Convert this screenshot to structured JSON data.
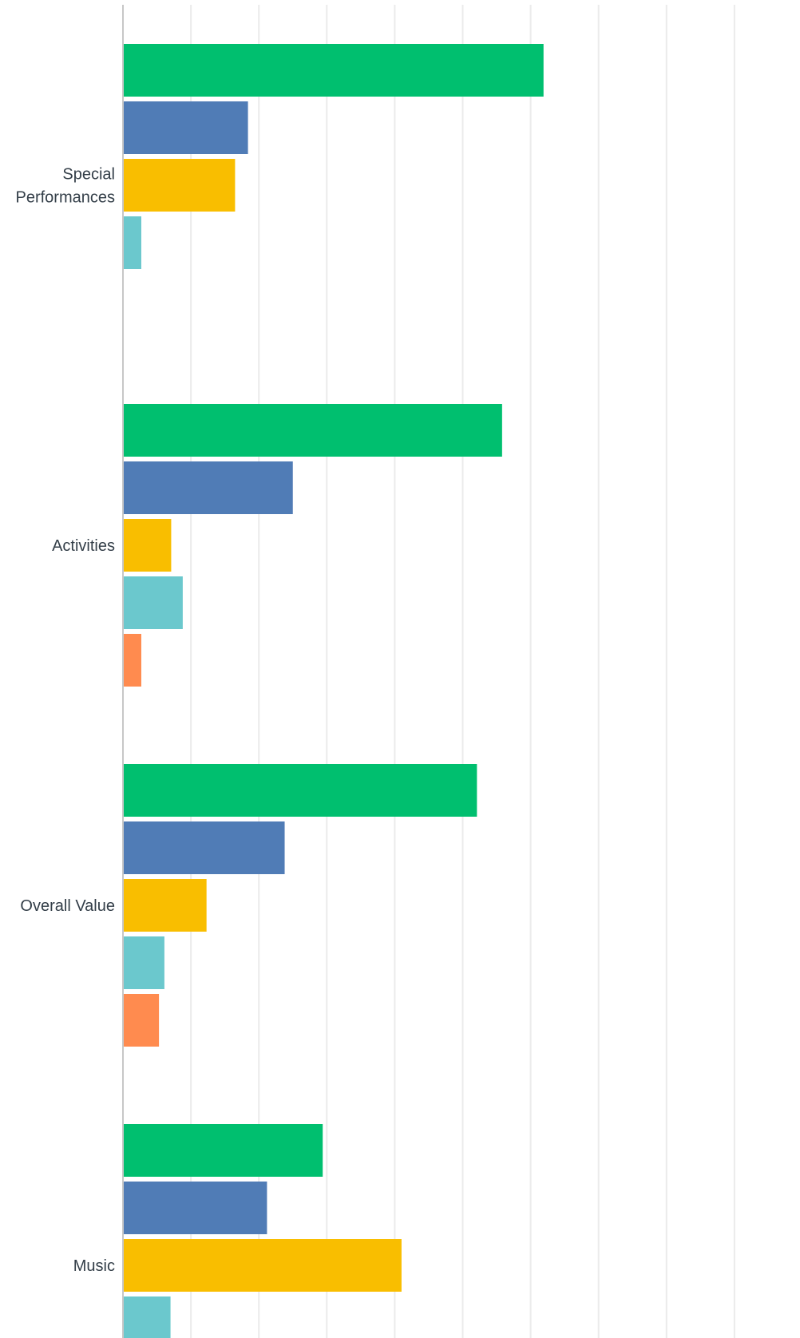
{
  "chart_data": {
    "type": "bar",
    "orientation": "horizontal",
    "grid": true,
    "xlim": [
      0,
      100
    ],
    "xticks": [
      0,
      10,
      20,
      30,
      40,
      50,
      60,
      70,
      80,
      90,
      100
    ],
    "categories": [
      "Special Performances",
      "Activities",
      "Overall Value",
      "Music"
    ],
    "category_label_lines": [
      [
        "Special",
        "Performances"
      ],
      [
        "Activities"
      ],
      [
        "Overall Value"
      ],
      [
        "Music"
      ]
    ],
    "series": [
      {
        "color": "#00bf6f",
        "values": [
          61.9,
          55.8,
          52.1,
          29.4
        ]
      },
      {
        "color": "#507cb6",
        "values": [
          18.4,
          25.0,
          23.8,
          21.2
        ]
      },
      {
        "color": "#f9be00",
        "values": [
          16.5,
          7.1,
          12.3,
          41.0
        ]
      },
      {
        "color": "#6bc8cd",
        "values": [
          2.7,
          8.8,
          6.1,
          7.0
        ]
      },
      {
        "color": "#ff8b4f",
        "values": [
          0,
          2.7,
          5.3,
          null
        ]
      }
    ]
  }
}
